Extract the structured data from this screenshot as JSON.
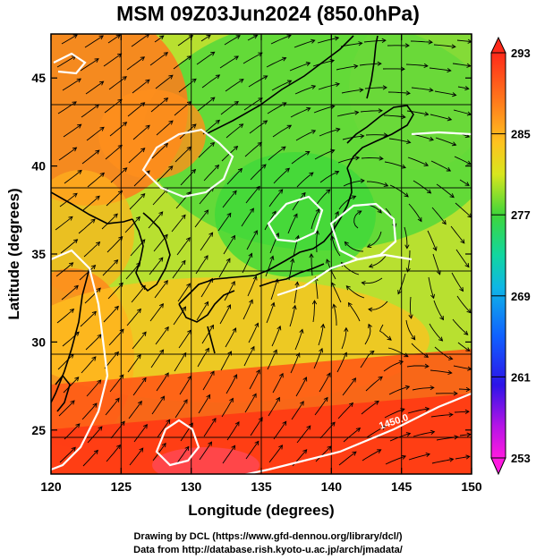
{
  "title": "MSM 09Z03Jun2024 (850.0hPa)",
  "x_axis": {
    "label": "Longitude (degrees)",
    "min": 120,
    "max": 150,
    "ticks": [
      "120",
      "125",
      "130",
      "135",
      "140",
      "145",
      "150"
    ]
  },
  "y_axis": {
    "label": "Latitude  (degrees)",
    "min": 22.5,
    "max": 47.5,
    "ticks": [
      "25",
      "30",
      "35",
      "40",
      "45"
    ]
  },
  "colorbar": {
    "labels": [
      "293",
      "285",
      "277",
      "269",
      "261",
      "253"
    ],
    "min": 253,
    "max": 293
  },
  "contour_label": "1450.0",
  "credits": {
    "line1": "Drawing by DCL (https://www.gfd-dennou.org/library/dcl/)",
    "line2": "Data from http://database.rish.kyoto-u.ac.jp/arch/jmadata/"
  },
  "colors": {
    "warm": "#ff4010",
    "mid": "#f4d21f",
    "cool": "#21d050",
    "contour": "#ffffff",
    "coast": "#000000"
  }
}
